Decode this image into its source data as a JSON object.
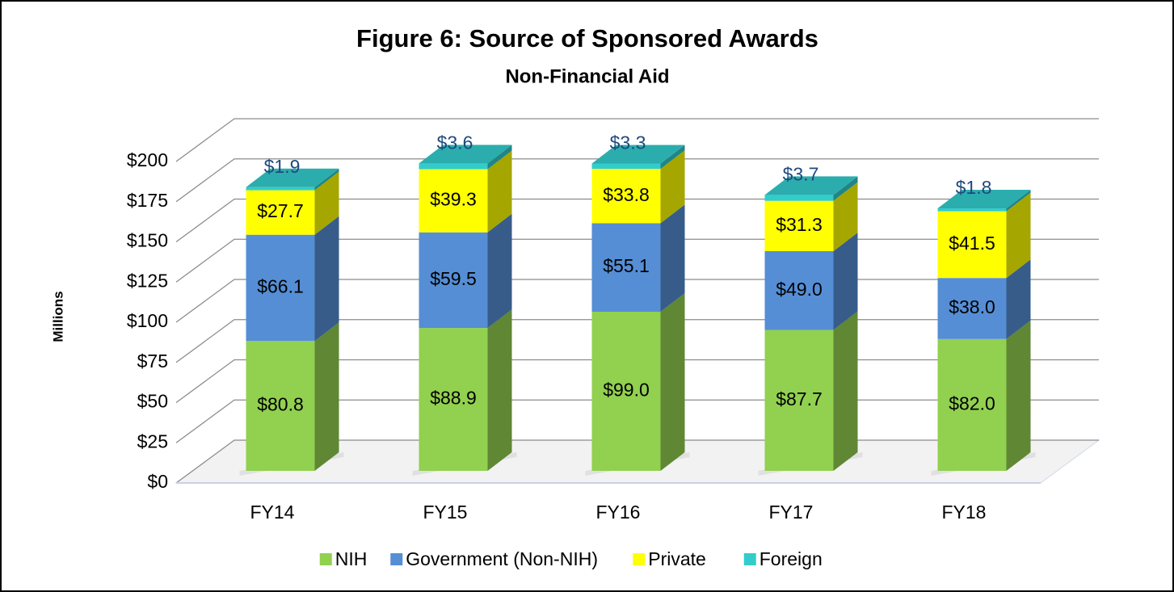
{
  "chart_data": {
    "type": "bar3d_stacked",
    "title": "Figure 6: Source of Sponsored Awards",
    "subtitle": "Non-Financial Aid",
    "ylabel": "Millions",
    "categories": [
      "FY14",
      "FY15",
      "FY16",
      "FY17",
      "FY18"
    ],
    "series": [
      {
        "name": "NIH",
        "color": "#92d050",
        "values": [
          80.8,
          88.9,
          99.0,
          87.7,
          82.0
        ],
        "value_labels": [
          "$80.8",
          "$88.9",
          "$99.0",
          "$87.7",
          "$82.0"
        ]
      },
      {
        "name": "Government (Non-NIH)",
        "color": "#558ed5",
        "values": [
          66.1,
          59.5,
          55.1,
          49.0,
          38.0
        ],
        "value_labels": [
          "$66.1",
          "$59.5",
          "$55.1",
          "$49.0",
          "$38.0"
        ]
      },
      {
        "name": "Private",
        "color": "#ffff00",
        "values": [
          27.7,
          39.3,
          33.8,
          31.3,
          41.5
        ],
        "value_labels": [
          "$27.7",
          "$39.3",
          "$33.8",
          "$31.3",
          "$41.5"
        ]
      },
      {
        "name": "Foreign",
        "color": "#33cccc",
        "values": [
          1.9,
          3.6,
          3.3,
          3.7,
          1.8
        ],
        "value_labels": [
          "$1.9",
          "$3.6",
          "$3.3",
          "$3.7",
          "$1.8"
        ]
      }
    ],
    "ylim": [
      0,
      200
    ],
    "yticks": [
      {
        "value": 0,
        "label": "$0"
      },
      {
        "value": 25,
        "label": "$25"
      },
      {
        "value": 50,
        "label": "$50"
      },
      {
        "value": 75,
        "label": "$75"
      },
      {
        "value": 100,
        "label": "$100"
      },
      {
        "value": 125,
        "label": "$125"
      },
      {
        "value": 150,
        "label": "$150"
      },
      {
        "value": 175,
        "label": "$175"
      },
      {
        "value": 200,
        "label": "$200"
      }
    ],
    "grid": true,
    "legend": "bottom"
  }
}
